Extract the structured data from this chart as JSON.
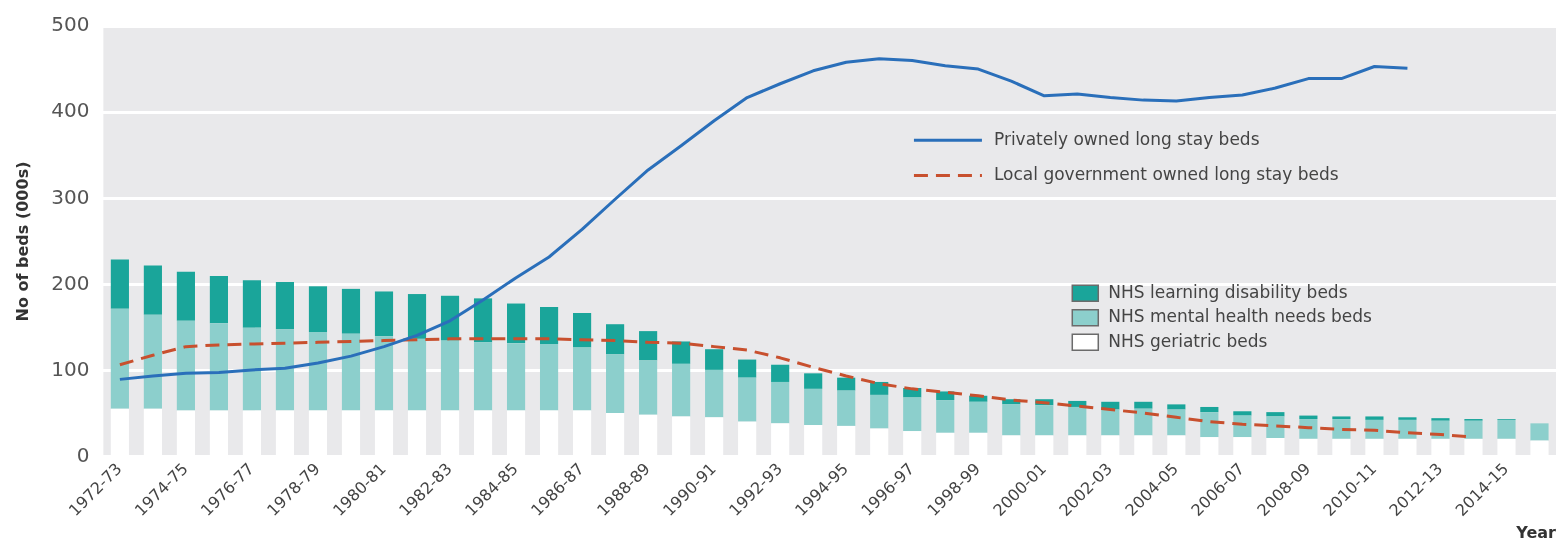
{
  "chart_data": {
    "type": "bar",
    "stacked": true,
    "xlabel": "Year",
    "ylabel": "No of beds (000s)",
    "categories": [
      "1972-73",
      null,
      "1974-75",
      null,
      "1976-77",
      null,
      "1978-79",
      null,
      "1980-81",
      null,
      "1982-83",
      null,
      "1984-85",
      null,
      "1986-87",
      null,
      "1988-89",
      null,
      "1990-91",
      null,
      "1992-93",
      null,
      "1994-95",
      null,
      "1996-97",
      null,
      "1998-99",
      null,
      "2000-01",
      null,
      "2002-03",
      null,
      "2004-05",
      null,
      "2006-07",
      null,
      "2008-09",
      null,
      "2010-11",
      null,
      "2012-13",
      null,
      "2014-15",
      null
    ],
    "ylim": [
      0,
      500
    ],
    "yticks": [
      0,
      100,
      200,
      300,
      400,
      500
    ],
    "grid": "y",
    "legend": "right",
    "marker": "none",
    "series": [
      {
        "name": "NHS geriatric beds",
        "color": "#ffffff",
        "values": [
          56,
          56,
          54,
          54,
          54,
          54,
          54,
          54,
          54,
          54,
          54,
          54,
          54,
          54,
          54,
          51,
          49,
          47,
          46,
          41,
          39,
          37,
          36,
          33,
          30,
          28,
          28,
          25,
          25,
          25,
          25,
          25,
          25,
          23,
          23,
          22,
          21,
          21,
          21,
          21,
          21,
          21,
          21,
          19
        ]
      },
      {
        "name": "NHS mental health needs beds",
        "color": "#8ccfcc",
        "values": [
          116,
          109,
          104,
          101,
          96,
          94,
          91,
          89,
          86,
          83,
          81,
          79,
          78,
          77,
          73,
          68,
          63,
          61,
          55,
          51,
          48,
          42,
          41,
          39,
          39,
          38,
          36,
          36,
          35,
          33,
          30,
          31,
          30,
          29,
          25,
          25,
          23,
          23,
          22,
          22,
          21,
          21,
          22,
          20
        ]
      },
      {
        "name": "NHS learning disability beds",
        "color": "#1aa59a",
        "values": [
          57,
          57,
          57,
          55,
          55,
          55,
          53,
          52,
          52,
          52,
          52,
          51,
          46,
          43,
          40,
          35,
          34,
          26,
          24,
          21,
          20,
          18,
          15,
          15,
          11,
          10,
          7,
          6,
          7,
          7,
          9,
          8,
          6,
          6,
          5,
          5,
          4,
          3,
          4,
          3,
          3,
          2,
          1,
          0
        ]
      },
      {
        "name": "Privately owned long stay beds",
        "type": "line",
        "line_style": "solid",
        "color": "#2a6fba",
        "values": [
          90,
          94,
          97,
          98,
          101,
          103,
          109,
          117,
          128,
          141,
          158,
          182,
          208,
          232,
          264,
          299,
          333,
          361,
          390,
          417,
          433,
          448,
          458,
          462,
          460,
          454,
          450,
          436,
          419,
          421,
          417,
          414,
          413,
          417,
          420,
          428,
          439,
          439,
          453,
          451,
          null,
          null,
          null,
          null
        ]
      },
      {
        "name": "Local government owned long stay beds",
        "type": "line",
        "line_style": "dashed",
        "color": "#c8502e",
        "values": [
          107,
          118,
          128,
          130,
          131,
          132,
          133,
          134,
          135,
          136,
          137,
          137,
          137,
          137,
          136,
          135,
          133,
          132,
          128,
          124,
          115,
          104,
          94,
          85,
          79,
          75,
          71,
          66,
          63,
          59,
          55,
          51,
          46,
          41,
          38,
          36,
          34,
          32,
          31,
          28,
          26,
          23,
          null,
          null
        ]
      }
    ]
  }
}
